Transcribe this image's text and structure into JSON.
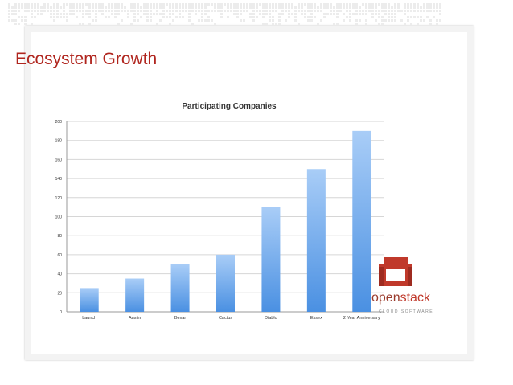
{
  "slide": {
    "title": "Ecosystem Growth"
  },
  "logo": {
    "word_open": "open",
    "word_stack": "stack",
    "subtitle": "CLOUD SOFTWARE"
  },
  "colors": {
    "title": "#b0251e",
    "bar_top": "#a9cdf7",
    "bar_bottom": "#4a90e2",
    "logo_red": "#c0392b"
  },
  "chart_data": {
    "type": "bar",
    "title": "Participating Companies",
    "xlabel": "",
    "ylabel": "",
    "categories": [
      "Launch",
      "Austin",
      "Bexar",
      "Cactus",
      "Diablo",
      "Essex",
      "2 Year Anniversary"
    ],
    "values": [
      25,
      35,
      50,
      60,
      110,
      150,
      190
    ],
    "ylim": [
      0,
      200
    ],
    "yticks": [
      0,
      20,
      40,
      60,
      80,
      100,
      120,
      140,
      160,
      180,
      200
    ],
    "grid": true,
    "legend": "none"
  }
}
